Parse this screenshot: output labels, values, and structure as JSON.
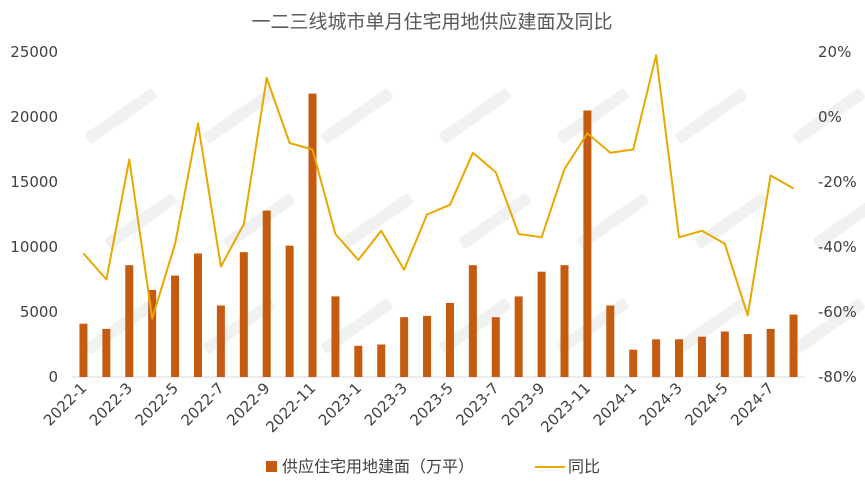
{
  "chart_data": {
    "type": "bar+line",
    "title": "一二三线城市单月住宅用地供应建面及同比",
    "categories": [
      "2022-1",
      "2022-2",
      "2022-3",
      "2022-4",
      "2022-5",
      "2022-6",
      "2022-7",
      "2022-8",
      "2022-9",
      "2022-10",
      "2022-11",
      "2022-12",
      "2023-1",
      "2023-2",
      "2023-3",
      "2023-4",
      "2023-5",
      "2023-6",
      "2023-7",
      "2023-8",
      "2023-9",
      "2023-10",
      "2023-11",
      "2023-12",
      "2024-1",
      "2024-2",
      "2024-3",
      "2024-4",
      "2024-5",
      "2024-6",
      "2024-7",
      "2024-8"
    ],
    "x_tick_labels": [
      "2022-1",
      "2022-3",
      "2022-5",
      "2022-7",
      "2022-9",
      "2022-11",
      "2023-1",
      "2023-3",
      "2023-5",
      "2023-7",
      "2023-9",
      "2023-11",
      "2024-1",
      "2024-3",
      "2024-5",
      "2024-7"
    ],
    "series": [
      {
        "name": "供应住宅用地建面（万平）",
        "type": "bar",
        "axis": "left",
        "color": "#C55A11",
        "values": [
          4100,
          3700,
          8600,
          6700,
          7800,
          9500,
          5500,
          9600,
          12800,
          10100,
          21800,
          6200,
          2400,
          2500,
          4600,
          4700,
          5700,
          8600,
          4600,
          6200,
          8100,
          8600,
          20500,
          5500,
          2100,
          2900,
          2900,
          3100,
          3500,
          3300,
          3700,
          4800
        ]
      },
      {
        "name": "同比",
        "type": "line",
        "axis": "right",
        "color": "#E8A800",
        "values": [
          -42,
          -50,
          -13,
          -62,
          -39,
          -2,
          -46,
          -33,
          12,
          -8,
          -10,
          -36,
          -44,
          -35,
          -47,
          -30,
          -27,
          -11,
          -17,
          -36,
          -37,
          -16,
          -5,
          -11,
          -10,
          19,
          -37,
          -35,
          -39,
          -61,
          -18,
          -22
        ]
      }
    ],
    "y_left": {
      "min": 0,
      "max": 25000,
      "ticks": [
        "0",
        "5000",
        "10000",
        "15000",
        "20000",
        "25000"
      ]
    },
    "y_right": {
      "min": -80,
      "max": 20,
      "ticks": [
        "-80%",
        "-60%",
        "-40%",
        "-20%",
        "0%",
        "20%"
      ]
    },
    "legend_position": "bottom",
    "grid": false
  }
}
